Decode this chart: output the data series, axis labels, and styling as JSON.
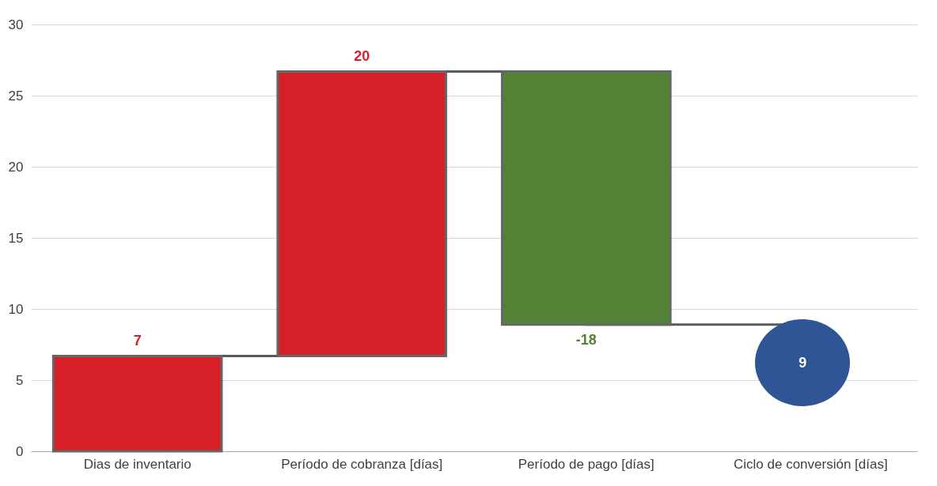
{
  "chart_data": {
    "type": "bar",
    "categories": [
      "Dias de inventario",
      "Período de cobranza [días]",
      "Período de pago [días]",
      "Ciclo de conversión [días]"
    ],
    "values": [
      6.7,
      20,
      -17.8,
      null
    ],
    "base": [
      0,
      6.7,
      26.7,
      null
    ],
    "colors": [
      "#d71f27",
      "#d71f27",
      "#538135",
      null
    ],
    "value_labels": [
      "7",
      "20",
      "-18",
      null
    ],
    "annotations": [
      "9"
    ],
    "ylim": [
      0,
      30
    ],
    "yticks": [
      0,
      5,
      10,
      15,
      20,
      25,
      30
    ],
    "grid": "y"
  }
}
